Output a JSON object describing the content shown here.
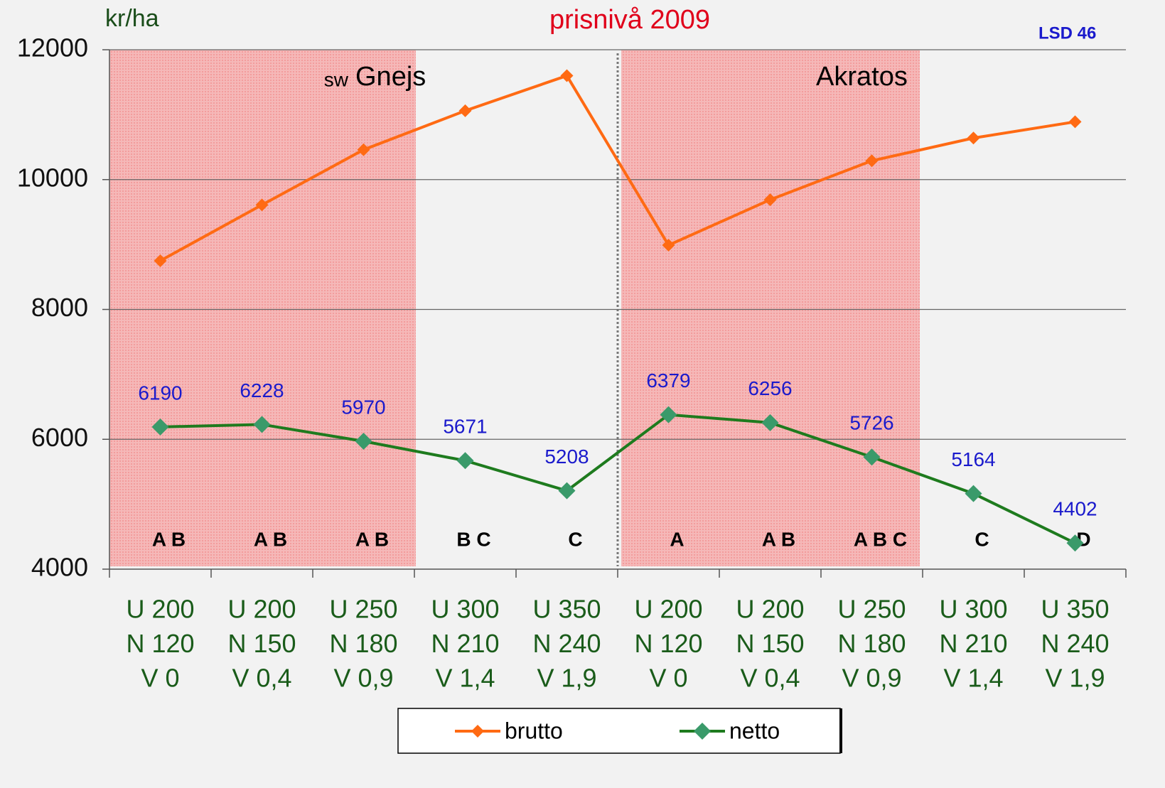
{
  "chart_data": {
    "type": "line",
    "title": "prisnivå 2009",
    "y_label": "kr/ha",
    "annotations": [
      "sw",
      "Gnejs",
      "Akratos",
      "LSD 46"
    ],
    "categories": [
      [
        "U 200",
        "N 120",
        "V 0"
      ],
      [
        "U 200",
        "N 150",
        "V 0,4"
      ],
      [
        "U 250",
        "N 180",
        "V 0,9"
      ],
      [
        "U 300",
        "N 210",
        "V 1,4"
      ],
      [
        "U 350",
        "N 240",
        "V 1,9"
      ],
      [
        "U 200",
        "N 120",
        "V 0"
      ],
      [
        "U 200",
        "N 150",
        "V 0,4"
      ],
      [
        "U 250",
        "N 180",
        "V 0,9"
      ],
      [
        "U 300",
        "N 210",
        "V 1,4"
      ],
      [
        "U 350",
        "N 240",
        "V 1,9"
      ]
    ],
    "letters": [
      "A B",
      "A B",
      "A B",
      "B C",
      "C",
      "A",
      "A B",
      "A B C",
      "C",
      "D"
    ],
    "series": [
      {
        "name": "brutto",
        "color": "#ff6a13",
        "values": [
          8750,
          9610,
          10460,
          11060,
          11600,
          8990,
          9690,
          10290,
          10640,
          10890
        ]
      },
      {
        "name": "netto",
        "color": "#1e7b1e",
        "marker_color": "#3a9a6a",
        "values": [
          6190,
          6228,
          5970,
          5671,
          5208,
          6379,
          6256,
          5726,
          5164,
          4402
        ]
      }
    ],
    "value_label_series": 1,
    "ylim": [
      4000,
      12000
    ],
    "yticks": [
      4000,
      6000,
      8000,
      10000,
      12000
    ],
    "grid": true
  }
}
